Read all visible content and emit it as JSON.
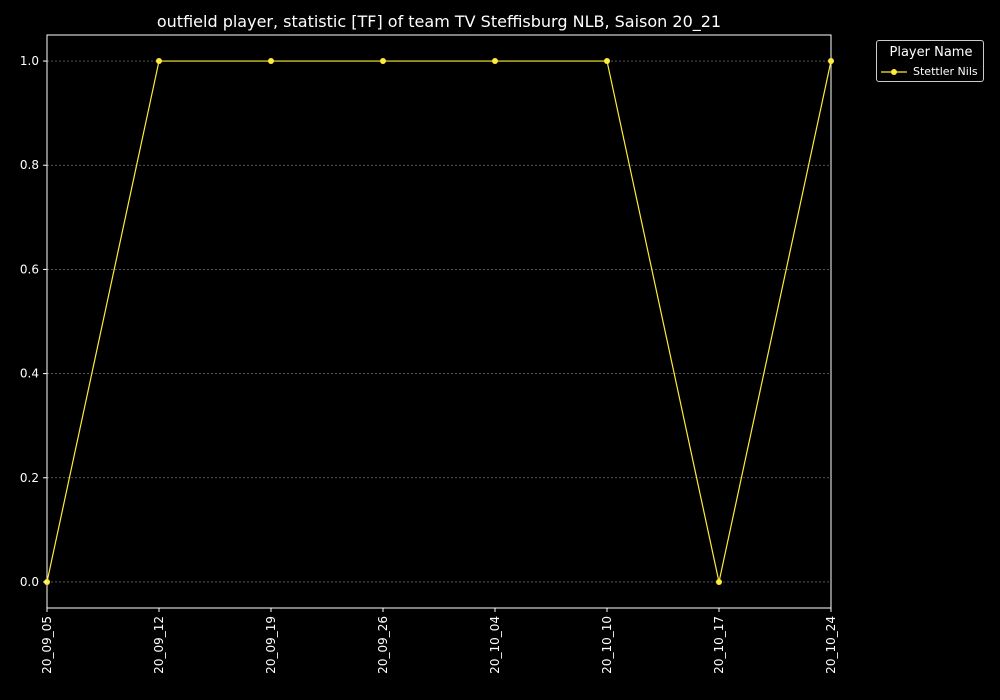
{
  "chart_data": {
    "type": "line",
    "title": "outfield player, statistic [TF] of team TV Steffisburg NLB, Saison 20_21",
    "xlabel": "",
    "ylabel": "",
    "categories": [
      "20_09_05",
      "20_09_12",
      "20_09_19",
      "20_09_26",
      "20_10_04",
      "20_10_10",
      "20_10_17",
      "20_10_24"
    ],
    "series": [
      {
        "name": "Stettler Nils",
        "values": [
          0,
          1,
          1,
          1,
          1,
          1,
          0,
          1
        ],
        "color": "#ffeb3b"
      }
    ],
    "ylim": [
      -0.05,
      1.05
    ],
    "yticks": [
      "0.0",
      "0.2",
      "0.4",
      "0.6",
      "0.8",
      "1.0"
    ],
    "grid": true,
    "legend": {
      "title": "Player Name",
      "placement": "outside-top-right"
    },
    "colors": {
      "background": "#000000",
      "axes": "#ffffff",
      "grid": "#888888",
      "text": "#ffffff"
    }
  }
}
